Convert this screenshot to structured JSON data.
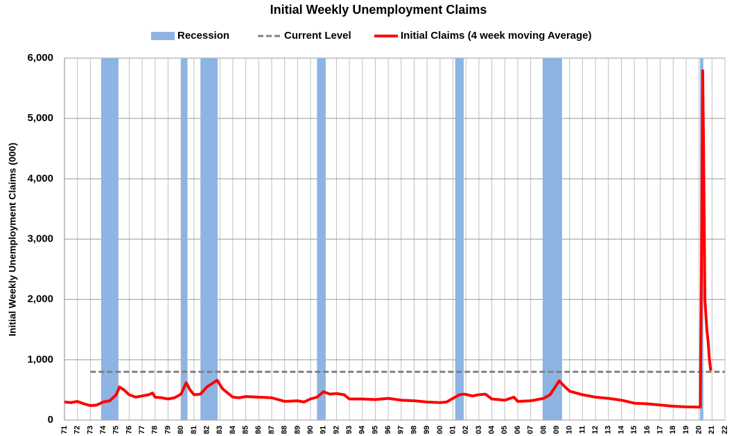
{
  "chart_data": {
    "type": "line",
    "title": "Initial Weekly Unemployment Claims",
    "y_label": "Initial Weekly Unemployment Claims (000)",
    "xlim": [
      1971,
      2022
    ],
    "ylim": [
      0,
      6000
    ],
    "yticks": [
      0,
      {
        "value": 1000,
        "label": "1,000"
      },
      {
        "value": 2000,
        "label": "2,000"
      },
      {
        "value": 3000,
        "label": "3,000"
      },
      {
        "value": 4000,
        "label": "4,000"
      },
      {
        "value": 5000,
        "label": "5,000"
      },
      {
        "value": 6000,
        "label": "6,000"
      }
    ],
    "xticks": [
      {
        "value": 1971,
        "label": "71"
      },
      {
        "value": 1972,
        "label": "72"
      },
      {
        "value": 1973,
        "label": "73"
      },
      {
        "value": 1974,
        "label": "74"
      },
      {
        "value": 1975,
        "label": "75"
      },
      {
        "value": 1976,
        "label": "76"
      },
      {
        "value": 1977,
        "label": "77"
      },
      {
        "value": 1978,
        "label": "78"
      },
      {
        "value": 1979,
        "label": "79"
      },
      {
        "value": 1980,
        "label": "80"
      },
      {
        "value": 1981,
        "label": "81"
      },
      {
        "value": 1982,
        "label": "82"
      },
      {
        "value": 1983,
        "label": "83"
      },
      {
        "value": 1984,
        "label": "84"
      },
      {
        "value": 1985,
        "label": "85"
      },
      {
        "value": 1986,
        "label": "86"
      },
      {
        "value": 1987,
        "label": "87"
      },
      {
        "value": 1988,
        "label": "88"
      },
      {
        "value": 1989,
        "label": "89"
      },
      {
        "value": 1990,
        "label": "90"
      },
      {
        "value": 1991,
        "label": "91"
      },
      {
        "value": 1992,
        "label": "92"
      },
      {
        "value": 1993,
        "label": "93"
      },
      {
        "value": 1994,
        "label": "94"
      },
      {
        "value": 1995,
        "label": "95"
      },
      {
        "value": 1996,
        "label": "96"
      },
      {
        "value": 1997,
        "label": "97"
      },
      {
        "value": 1998,
        "label": "98"
      },
      {
        "value": 1999,
        "label": "99"
      },
      {
        "value": 2000,
        "label": "00"
      },
      {
        "value": 2001,
        "label": "01"
      },
      {
        "value": 2002,
        "label": "02"
      },
      {
        "value": 2003,
        "label": "03"
      },
      {
        "value": 2004,
        "label": "04"
      },
      {
        "value": 2005,
        "label": "05"
      },
      {
        "value": 2006,
        "label": "06"
      },
      {
        "value": 2007,
        "label": "07"
      },
      {
        "value": 2008,
        "label": "08"
      },
      {
        "value": 2009,
        "label": "09"
      },
      {
        "value": 2010,
        "label": "10"
      },
      {
        "value": 2011,
        "label": "11"
      },
      {
        "value": 2012,
        "label": "12"
      },
      {
        "value": 2013,
        "label": "13"
      },
      {
        "value": 2014,
        "label": "14"
      },
      {
        "value": 2015,
        "label": "15"
      },
      {
        "value": 2016,
        "label": "16"
      },
      {
        "value": 2017,
        "label": "17"
      },
      {
        "value": 2018,
        "label": "18"
      },
      {
        "value": 2019,
        "label": "19"
      },
      {
        "value": 2020,
        "label": "20"
      },
      {
        "value": 2021,
        "label": "21"
      },
      {
        "value": 2022,
        "label": "22"
      }
    ],
    "grid": true,
    "series": [
      {
        "name": "Recession",
        "type": "band",
        "color": "#8db4e2",
        "ranges": [
          [
            1973.83,
            1975.17
          ],
          [
            1980.0,
            1980.5
          ],
          [
            1981.5,
            1982.83
          ],
          [
            1990.5,
            1991.17
          ],
          [
            2001.17,
            2001.83
          ],
          [
            2007.92,
            2009.42
          ],
          [
            2020.08,
            2020.33
          ]
        ]
      },
      {
        "name": "Current Level",
        "type": "dashed",
        "color": "#808080",
        "x": [
          1973,
          2022
        ],
        "values": [
          800,
          800
        ]
      },
      {
        "name": "Initial Claims (4 week moving Average)",
        "type": "line",
        "color": "#ff0000",
        "x": [
          1971.0,
          1971.5,
          1972.0,
          1972.5,
          1973.0,
          1973.5,
          1974.0,
          1974.5,
          1975.0,
          1975.25,
          1975.6,
          1976.0,
          1976.5,
          1977.0,
          1977.5,
          1977.8,
          1978.0,
          1978.5,
          1979.0,
          1979.5,
          1980.0,
          1980.4,
          1980.7,
          1981.0,
          1981.5,
          1982.0,
          1982.8,
          1983.2,
          1983.6,
          1984.0,
          1984.5,
          1985.0,
          1986.0,
          1987.0,
          1988.0,
          1989.0,
          1989.5,
          1990.0,
          1990.5,
          1991.0,
          1991.5,
          1992.0,
          1992.6,
          1993.0,
          1994.0,
          1995.0,
          1996.0,
          1997.0,
          1998.0,
          1999.0,
          2000.0,
          2000.5,
          2001.0,
          2001.5,
          2001.9,
          2002.5,
          2003.0,
          2003.5,
          2004.0,
          2005.0,
          2005.7,
          2006.0,
          2007.0,
          2008.0,
          2008.5,
          2009.2,
          2009.6,
          2010.0,
          2011.0,
          2012.0,
          2013.0,
          2014.0,
          2015.0,
          2016.0,
          2017.0,
          2018.0,
          2019.0,
          2020.1,
          2020.2,
          2020.28,
          2020.35,
          2020.45,
          2020.6,
          2020.7,
          2020.8,
          2020.9
        ],
        "values": [
          300,
          290,
          310,
          270,
          240,
          250,
          300,
          320,
          420,
          550,
          500,
          420,
          380,
          400,
          420,
          450,
          380,
          370,
          350,
          370,
          430,
          620,
          500,
          420,
          430,
          550,
          660,
          520,
          450,
          380,
          370,
          390,
          380,
          370,
          310,
          320,
          300,
          350,
          380,
          470,
          430,
          440,
          420,
          350,
          350,
          340,
          360,
          330,
          320,
          300,
          290,
          300,
          360,
          420,
          430,
          400,
          420,
          430,
          350,
          330,
          380,
          310,
          320,
          360,
          420,
          650,
          560,
          480,
          420,
          380,
          360,
          330,
          280,
          270,
          250,
          230,
          220,
          215,
          3000,
          5790,
          4500,
          2000,
          1500,
          1300,
          1000,
          820
        ]
      }
    ]
  }
}
